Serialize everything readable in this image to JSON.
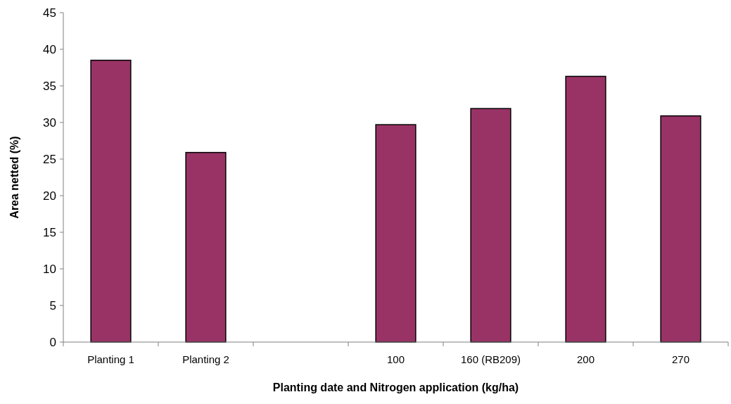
{
  "chart_data": {
    "type": "bar",
    "xlabel": "Planting date and Nitrogen application (kg/ha)",
    "ylabel": "Area netted (%)",
    "categories": [
      "Planting 1",
      "Planting 2",
      null,
      "100",
      "160 (RB209)",
      "200",
      "270"
    ],
    "values": [
      38.5,
      25.9,
      null,
      29.7,
      31.9,
      36.3,
      30.9
    ],
    "color": "#993366",
    "ylim": [
      0,
      45
    ],
    "yticks": [
      0,
      5,
      10,
      15,
      20,
      25,
      30,
      35,
      40,
      45
    ],
    "grid": false
  }
}
